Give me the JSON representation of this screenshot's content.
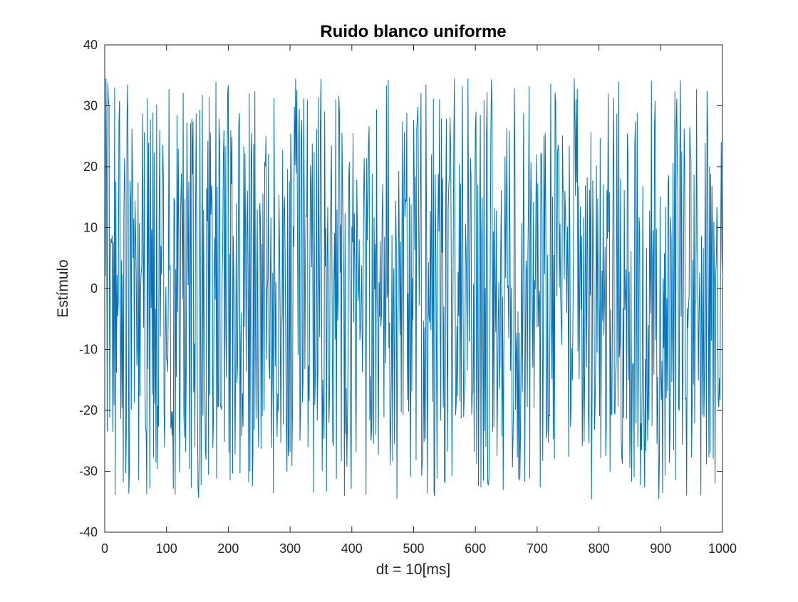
{
  "chart_data": {
    "type": "line",
    "title": "Ruido blanco uniforme",
    "xlabel": "dt = 10[ms]",
    "ylabel": "Estímulo",
    "xlim": [
      0,
      1000
    ],
    "ylim": [
      -40,
      40
    ],
    "xticks": [
      0,
      100,
      200,
      300,
      400,
      500,
      600,
      700,
      800,
      900,
      1000
    ],
    "xtick_labels": [
      "0",
      "100",
      "200",
      "300",
      "400",
      "500",
      "600",
      "700",
      "800",
      "900",
      "1000"
    ],
    "yticks": [
      -40,
      -30,
      -20,
      -10,
      0,
      10,
      20,
      30,
      40
    ],
    "ytick_labels": [
      "-40",
      "-30",
      "-20",
      "-10",
      "0",
      "10",
      "20",
      "30",
      "40"
    ],
    "grid": false,
    "line_color": "#0072BD",
    "series": [
      {
        "n_points": 1000,
        "x_start": 1,
        "x_step": 1,
        "distribution": "uniform",
        "range": [
          -34.6,
          34.6
        ]
      }
    ]
  }
}
